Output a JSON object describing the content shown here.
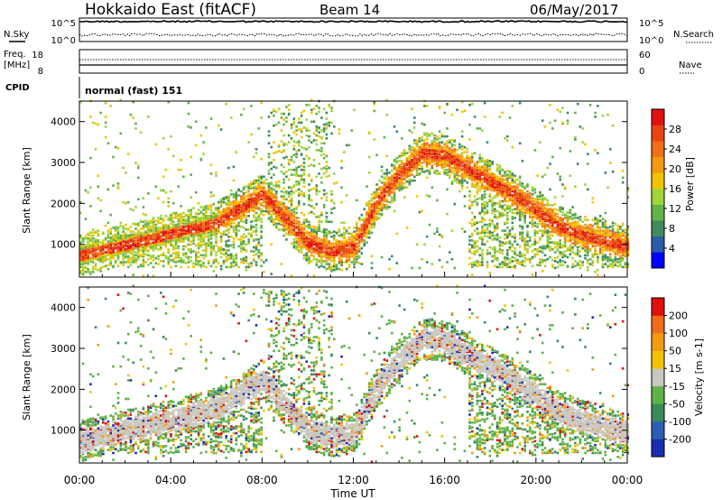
{
  "header": {
    "radar": "Hokkaido East (fitACF)",
    "beam": "Beam 14",
    "date": "06/May/2017"
  },
  "top_panels": {
    "nsky_label": "N.Sky",
    "nsearch_label": "N.Search",
    "noise_ticks_left": [
      "10^5",
      "10^0"
    ],
    "noise_ticks_right": [
      "10^5",
      "10^0"
    ],
    "freq_label_1": "Freq.",
    "freq_label_2": "[MHz]",
    "freq_ticks": [
      "18",
      "8"
    ],
    "nave_label": "Nave",
    "nave_ticks": [
      "60",
      "0"
    ],
    "cpid_label": "CPID",
    "cpid_text": "normal (fast) 151"
  },
  "x_axis": {
    "label": "Time UT",
    "ticks": [
      "00:00",
      "04:00",
      "08:00",
      "12:00",
      "16:00",
      "20:00",
      "00:00"
    ]
  },
  "power_panel": {
    "ylabel": "Slant Range [km]",
    "yticks": [
      "4000",
      "3000",
      "2000",
      "1000"
    ],
    "colorbar_label": "Power [dB]",
    "colorbar_ticks": [
      "28",
      "24",
      "20",
      "16",
      "12",
      "8",
      "4"
    ],
    "colors": [
      "#0000ff",
      "#2c5aa8",
      "#3f8a5e",
      "#62b14a",
      "#9fd43a",
      "#f0c400",
      "#f39a13",
      "#f07019",
      "#e84412",
      "#e01010"
    ]
  },
  "velocity_panel": {
    "ylabel": "Slant Range [km]",
    "yticks": [
      "4000",
      "3000",
      "2000",
      "1000"
    ],
    "colorbar_label": "Velocity [m s-1]",
    "colorbar_ticks": [
      "200",
      "100",
      "50",
      "15",
      "-15",
      "-50",
      "-100",
      "-200"
    ],
    "colors": [
      "#1a2eb0",
      "#2d5db5",
      "#3a8a5a",
      "#5fb14a",
      "#c8c8c0",
      "#f0c400",
      "#f39a13",
      "#f06d19",
      "#e01010"
    ]
  },
  "chart_data": {
    "type": "heatmap",
    "x_range_hours": [
      0,
      24
    ],
    "y_range_km": [
      200,
      4500
    ],
    "power_range_db": [
      0,
      30
    ],
    "velocity_range_ms": [
      -250,
      250
    ],
    "ground_scatter_color": "#c8c8c0",
    "note_tracks": [
      {
        "name": "",
        "hours": [
          0,
          3,
          6,
          8,
          10,
          11,
          12,
          13,
          14,
          15,
          16,
          17,
          18,
          19,
          20,
          21,
          22,
          24
        ],
        "range_km": [
          700,
          1100,
          1500,
          2200,
          1000,
          800,
          900,
          2000,
          2700,
          3200,
          3150,
          2800,
          2500,
          2200,
          1800,
          1400,
          1200,
          900
        ]
      }
    ]
  }
}
